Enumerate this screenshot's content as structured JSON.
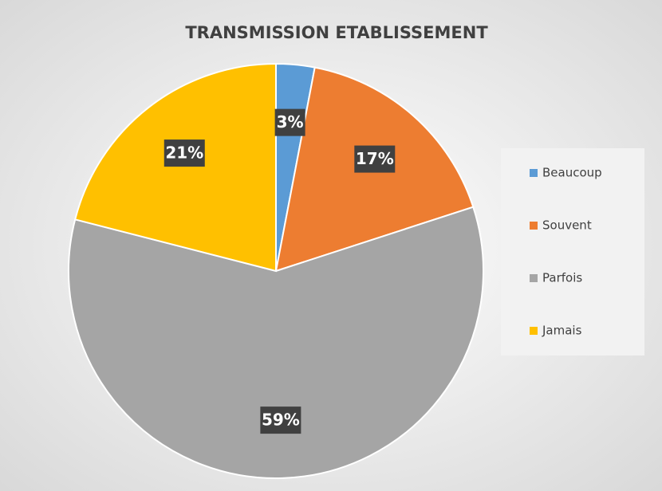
{
  "chart_data": {
    "type": "pie",
    "title": "TRANSMISSION ETABLISSEMENT",
    "categories": [
      "Beaucoup",
      "Souvent",
      "Parfois",
      "Jamais"
    ],
    "values": [
      3,
      17,
      59,
      21
    ],
    "value_labels": [
      "3%",
      "17%",
      "59%",
      "21%"
    ],
    "colors": [
      "#5b9bd5",
      "#ed7d31",
      "#a5a5a5",
      "#ffc000"
    ],
    "legend": "right"
  }
}
